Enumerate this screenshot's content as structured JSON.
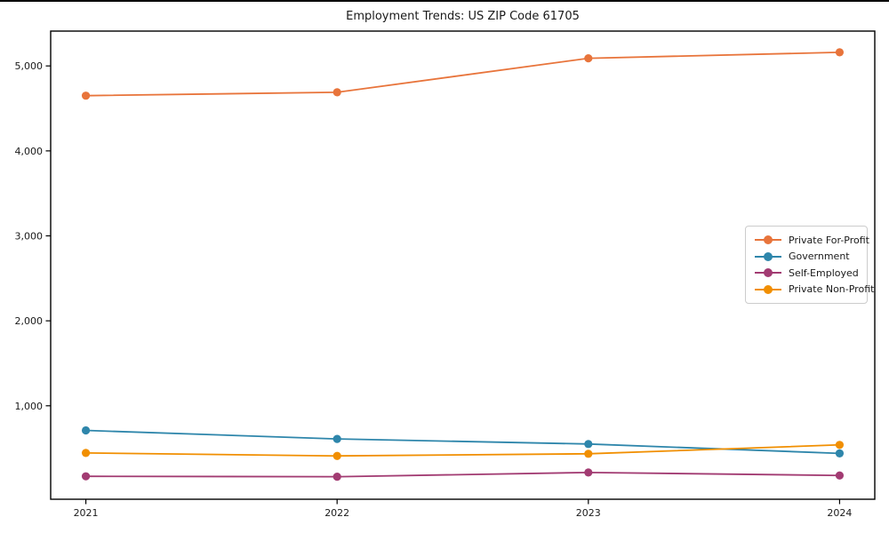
{
  "page": {
    "title": "Employment Trends: US ZIP Code 61705"
  },
  "chart_data": {
    "type": "line",
    "title": "Employment Trends: US ZIP Code 61705",
    "xlabel": "",
    "ylabel": "",
    "x": [
      2021,
      2022,
      2023,
      2024
    ],
    "x_tick_labels": [
      "2021",
      "2022",
      "2023",
      "2024"
    ],
    "y_ticks": [
      1000,
      2000,
      3000,
      4000,
      5000
    ],
    "y_tick_labels": [
      "1,000",
      "2,000",
      "3,000",
      "4,000",
      "5,000"
    ],
    "ylim": [
      -100,
      5410
    ],
    "xlim": [
      2020.86,
      2024.14
    ],
    "grid": false,
    "legend_position": "center-right",
    "series": [
      {
        "name": "Private For-Profit",
        "color": "#E8743B",
        "values": [
          4650,
          4690,
          5090,
          5160
        ]
      },
      {
        "name": "Government",
        "color": "#2E86AB",
        "values": [
          710,
          610,
          550,
          440
        ]
      },
      {
        "name": "Self-Employed",
        "color": "#A23B72",
        "values": [
          170,
          165,
          215,
          180
        ]
      },
      {
        "name": "Private Non-Profit",
        "color": "#F18F01",
        "values": [
          445,
          410,
          435,
          540
        ]
      }
    ]
  },
  "colors": {
    "axis": "#000000",
    "tick_label": "#1a1a1a",
    "legend_border": "#cccccc",
    "background": "#ffffff"
  }
}
